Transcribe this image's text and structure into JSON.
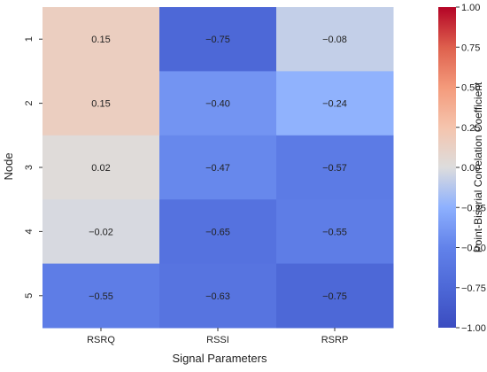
{
  "chart_data": {
    "type": "heatmap",
    "title": "",
    "xlabel": "Signal Parameters",
    "ylabel": "Node",
    "columns": [
      "RSRQ",
      "RSSI",
      "RSRP"
    ],
    "rows": [
      "1",
      "2",
      "3",
      "4",
      "5"
    ],
    "values": [
      [
        0.15,
        -0.75,
        -0.08
      ],
      [
        0.15,
        -0.4,
        -0.24
      ],
      [
        0.02,
        -0.47,
        -0.57
      ],
      [
        -0.02,
        -0.65,
        -0.55
      ],
      [
        -0.55,
        -0.63,
        -0.75
      ]
    ],
    "cell_labels": [
      [
        "0.15",
        "−0.75",
        "−0.08"
      ],
      [
        "0.15",
        "−0.40",
        "−0.24"
      ],
      [
        "0.02",
        "−0.47",
        "−0.57"
      ],
      [
        "−0.02",
        "−0.65",
        "−0.55"
      ],
      [
        "−0.55",
        "−0.63",
        "−0.75"
      ]
    ],
    "colorbar": {
      "label": "Point-Biserial Correlation Coefficient",
      "range": [
        -1.0,
        1.0
      ],
      "ticks": [
        1.0,
        0.75,
        0.5,
        0.25,
        0.0,
        -0.25,
        -0.5,
        -0.75,
        -1.0
      ],
      "tick_labels": [
        "1.00",
        "0.75",
        "0.50",
        "0.25",
        "0.00",
        "−0.25",
        "−0.50",
        "−0.75",
        "−1.00"
      ],
      "colormap": "coolwarm",
      "colors": {
        "low": "#3b4cc0",
        "mid": "#dddddd",
        "high": "#b40426"
      }
    }
  }
}
